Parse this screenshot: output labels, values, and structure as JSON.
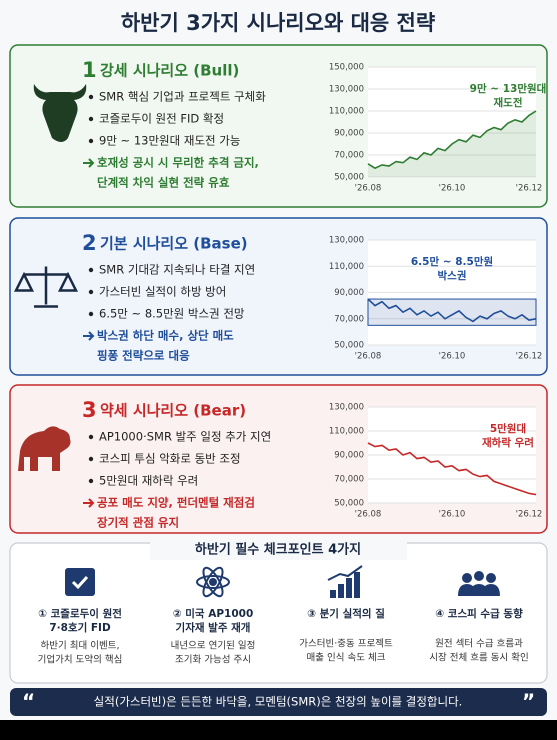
{
  "title": "하반기 3가지 시나리오와 대응 전략",
  "scenarios": [
    {
      "number": "1",
      "heading": "강세 시나리오 (Bull)",
      "bullets": [
        "SMR 핵심 기업과 프로젝트 구체화",
        "코즐로두이 원전 FID 확정",
        "9만 ~ 13만원대 재도전 가능"
      ],
      "action": [
        "호재성 공시 시 무리한 추격 금지,",
        "단계적 차익 실현 전략 유효"
      ],
      "chart_data": {
        "type": "line",
        "x": [
          0,
          1,
          2,
          3,
          4,
          5,
          6,
          7,
          8,
          9,
          10,
          11,
          12,
          13,
          14,
          15,
          16,
          17,
          18,
          19,
          20,
          21,
          22,
          23,
          24
        ],
        "xlim": [
          0,
          24
        ],
        "xticks": [
          {
            "value": 0,
            "label": "'26.08"
          },
          {
            "value": 12,
            "label": "'26.10"
          },
          {
            "value": 23,
            "label": "'26.12"
          }
        ],
        "values": [
          62000,
          58000,
          61000,
          60000,
          64000,
          63000,
          68000,
          66000,
          72000,
          70000,
          76000,
          74000,
          80000,
          84000,
          82000,
          88000,
          86000,
          92000,
          95000,
          93000,
          99000,
          102000,
          100000,
          106000,
          110000
        ],
        "color": "#2e7d32",
        "area": true,
        "ylim": [
          50000,
          150000
        ],
        "yticks": [
          {
            "value": 50000,
            "label": "50,000"
          },
          {
            "value": 70000,
            "label": "70,000"
          },
          {
            "value": 90000,
            "label": "90,000"
          },
          {
            "value": 110000,
            "label": "110,000"
          },
          {
            "value": 130000,
            "label": "130,000"
          },
          {
            "value": 150000,
            "label": "150,000"
          }
        ],
        "annotation": [
          "9만 ~ 13만원대",
          "재도전"
        ]
      }
    },
    {
      "number": "2",
      "heading": "기본 시나리오 (Base)",
      "bullets": [
        "SMR 기대감 지속되나 타결 지연",
        "가스터빈 실적이 하방 방어",
        "6.5만 ~ 8.5만원 박스권 전망"
      ],
      "action": [
        "박스권 하단 매수, 상단 매도",
        "핑퐁 전략으로 대응"
      ],
      "chart_data": {
        "type": "line",
        "x": [
          0,
          1,
          2,
          3,
          4,
          5,
          6,
          7,
          8,
          9,
          10,
          11,
          12,
          13,
          14,
          15,
          16,
          17,
          18,
          19,
          20,
          21,
          22,
          23,
          24
        ],
        "xlim": [
          0,
          24
        ],
        "xticks": [
          {
            "value": 0,
            "label": "'26.08"
          },
          {
            "value": 12,
            "label": "'26.10"
          },
          {
            "value": 23,
            "label": "'26.12"
          }
        ],
        "values": [
          85000,
          80000,
          83000,
          78000,
          80000,
          75000,
          78000,
          73000,
          76000,
          72000,
          75000,
          70000,
          73000,
          76000,
          71000,
          68000,
          72000,
          70000,
          74000,
          76000,
          72000,
          70000,
          73000,
          69000,
          70000
        ],
        "color": "#1f4e9a",
        "band": [
          65000,
          85000
        ],
        "ylim": [
          50000,
          130000
        ],
        "yticks": [
          {
            "value": 50000,
            "label": "50,000"
          },
          {
            "value": 70000,
            "label": "70,000"
          },
          {
            "value": 90000,
            "label": "90,000"
          },
          {
            "value": 110000,
            "label": "110,000"
          },
          {
            "value": 130000,
            "label": "130,000"
          }
        ],
        "annotation": [
          "6.5만 ~ 8.5만원",
          "박스권"
        ]
      }
    },
    {
      "number": "3",
      "heading": "약세 시나리오 (Bear)",
      "bullets": [
        "AP1000·SMR 발주 일정 추가 지연",
        "코스피 투심 악화로 동반 조정",
        "5만원대 재하락 우려"
      ],
      "action": [
        "공포 매도 지양, 펀더멘털 재점검",
        "장기적 관점 유지"
      ],
      "chart_data": {
        "type": "line",
        "x": [
          0,
          1,
          2,
          3,
          4,
          5,
          6,
          7,
          8,
          9,
          10,
          11,
          12,
          13,
          14,
          15,
          16,
          17,
          18,
          19,
          20,
          21,
          22,
          23,
          24
        ],
        "xlim": [
          0,
          24
        ],
        "xticks": [
          {
            "value": 0,
            "label": "'26.08"
          },
          {
            "value": 12,
            "label": "'26.10"
          },
          {
            "value": 23,
            "label": "'26.12"
          }
        ],
        "values": [
          100000,
          97000,
          98000,
          94000,
          95000,
          90000,
          92000,
          87000,
          88000,
          84000,
          85000,
          80000,
          81000,
          77000,
          78000,
          74000,
          72000,
          73000,
          68000,
          66000,
          64000,
          62000,
          60000,
          58000,
          57000
        ],
        "color": "#c62828",
        "ylim": [
          50000,
          130000
        ],
        "yticks": [
          {
            "value": 50000,
            "label": "50,000"
          },
          {
            "value": 70000,
            "label": "70,000"
          },
          {
            "value": 90000,
            "label": "90,000"
          },
          {
            "value": 110000,
            "label": "110,000"
          },
          {
            "value": 130000,
            "label": "130,000"
          }
        ],
        "annotation": [
          "5만원대",
          "재하락 우려"
        ]
      }
    }
  ],
  "checkpoints": {
    "title": "하반기 필수 체크포인트 4가지",
    "items": [
      {
        "label": [
          "① 코즐로두이 원전",
          "7·8호기 FID"
        ],
        "desc": [
          "하반기 최대 이벤트,",
          "기업가치 도약의 핵심"
        ]
      },
      {
        "label": [
          "② 미국 AP1000",
          "기자재 발주 재개"
        ],
        "desc": [
          "내년으로 연기된 일정",
          "조기화 가능성 주시"
        ]
      },
      {
        "label": [
          "③ 분기 실적의 질"
        ],
        "desc": [
          "가스터빈·중동 프로젝트",
          "매출 인식 속도 체크"
        ]
      },
      {
        "label": [
          "④ 코스피 수급 동향"
        ],
        "desc": [
          "원전 섹터 수급 흐름과",
          "시장 전체 흐름 동시 확인"
        ]
      }
    ]
  },
  "quote": "실적(가스터빈)은 든든한 바닥을, 모멘텀(SMR)은 천장의 높이를 결정합니다."
}
